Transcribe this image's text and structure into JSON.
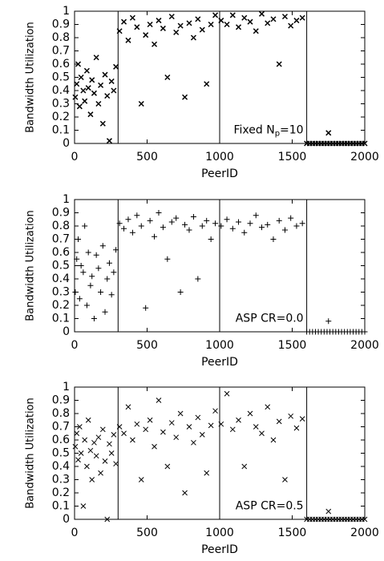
{
  "chart_data": [
    {
      "type": "scatter",
      "marker": "x",
      "color": "#000000",
      "ylabel": "Bandwidth Utilization",
      "xlabel": "PeerID",
      "annotation": "Fixed N",
      "annotation_sub": "p",
      "annotation_tail": "=10",
      "xlim": [
        0,
        2000
      ],
      "ylim": [
        0,
        1
      ],
      "xticks": [
        0,
        500,
        1000,
        1500,
        2000
      ],
      "yticks": [
        0,
        0.1,
        0.2,
        0.3,
        0.4,
        0.5,
        0.6,
        0.7,
        0.8,
        0.9,
        1
      ],
      "vlines": [
        300,
        1000,
        1600
      ],
      "x": [
        5,
        15,
        25,
        35,
        45,
        60,
        70,
        85,
        95,
        110,
        120,
        135,
        150,
        165,
        180,
        195,
        210,
        225,
        240,
        255,
        270,
        285,
        310,
        340,
        370,
        400,
        430,
        460,
        490,
        520,
        550,
        580,
        610,
        640,
        670,
        700,
        730,
        760,
        790,
        820,
        850,
        880,
        910,
        940,
        970,
        1010,
        1050,
        1090,
        1130,
        1170,
        1210,
        1250,
        1290,
        1330,
        1370,
        1410,
        1450,
        1490,
        1530,
        1570,
        1600,
        1620,
        1640,
        1660,
        1680,
        1700,
        1720,
        1740,
        1760,
        1780,
        1800,
        1820,
        1840,
        1860,
        1880,
        1900,
        1920,
        1940,
        1960,
        1980,
        2000,
        1750
      ],
      "values": [
        0.35,
        0.45,
        0.6,
        0.28,
        0.5,
        0.4,
        0.32,
        0.55,
        0.42,
        0.22,
        0.48,
        0.38,
        0.65,
        0.3,
        0.44,
        0.15,
        0.52,
        0.36,
        0.02,
        0.47,
        0.4,
        0.58,
        0.85,
        0.92,
        0.78,
        0.95,
        0.88,
        0.3,
        0.82,
        0.9,
        0.75,
        0.93,
        0.87,
        0.5,
        0.96,
        0.84,
        0.89,
        0.35,
        0.91,
        0.8,
        0.94,
        0.86,
        0.45,
        0.9,
        0.97,
        0.93,
        0.9,
        0.97,
        0.88,
        0.95,
        0.92,
        0.85,
        0.98,
        0.91,
        0.94,
        0.6,
        0.96,
        0.89,
        0.93,
        0.95,
        0,
        0,
        0,
        0,
        0,
        0,
        0,
        0,
        0,
        0,
        0,
        0,
        0,
        0,
        0,
        0,
        0,
        0,
        0,
        0,
        0,
        0.08
      ]
    },
    {
      "type": "scatter",
      "marker": "+",
      "color": "#000000",
      "ylabel": "Bandwidth Utilization",
      "xlabel": "PeerID",
      "annotation": "ASP CR=0.0",
      "xlim": [
        0,
        2000
      ],
      "ylim": [
        0,
        1
      ],
      "xticks": [
        0,
        500,
        1000,
        1500,
        2000
      ],
      "yticks": [
        0,
        0.1,
        0.2,
        0.3,
        0.4,
        0.5,
        0.6,
        0.7,
        0.8,
        0.9,
        1
      ],
      "vlines": [
        300,
        1000,
        1600
      ],
      "x": [
        5,
        15,
        25,
        35,
        45,
        60,
        70,
        85,
        95,
        110,
        120,
        135,
        150,
        165,
        180,
        195,
        210,
        225,
        240,
        255,
        270,
        285,
        310,
        340,
        370,
        400,
        430,
        460,
        490,
        520,
        550,
        580,
        610,
        640,
        670,
        700,
        730,
        760,
        790,
        820,
        850,
        880,
        910,
        940,
        970,
        1010,
        1050,
        1090,
        1130,
        1170,
        1210,
        1250,
        1290,
        1330,
        1370,
        1410,
        1450,
        1490,
        1530,
        1570,
        1600,
        1620,
        1640,
        1660,
        1680,
        1700,
        1720,
        1740,
        1760,
        1780,
        1800,
        1820,
        1840,
        1860,
        1880,
        1900,
        1920,
        1940,
        1960,
        1980,
        2000,
        1750
      ],
      "values": [
        0.3,
        0.55,
        0.7,
        0.25,
        0.5,
        0.45,
        0.8,
        0.2,
        0.6,
        0.35,
        0.42,
        0.1,
        0.58,
        0.48,
        0.3,
        0.65,
        0.15,
        0.4,
        0.52,
        0.28,
        0.45,
        0.62,
        0.82,
        0.78,
        0.85,
        0.75,
        0.88,
        0.8,
        0.18,
        0.84,
        0.72,
        0.9,
        0.79,
        0.55,
        0.83,
        0.86,
        0.3,
        0.81,
        0.77,
        0.87,
        0.4,
        0.8,
        0.84,
        0.7,
        0.82,
        0.8,
        0.85,
        0.78,
        0.83,
        0.75,
        0.82,
        0.88,
        0.79,
        0.81,
        0.7,
        0.84,
        0.77,
        0.86,
        0.8,
        0.82,
        0,
        0,
        0,
        0,
        0,
        0,
        0,
        0,
        0,
        0,
        0,
        0,
        0,
        0,
        0,
        0,
        0,
        0,
        0,
        0,
        0,
        0.08
      ]
    },
    {
      "type": "scatter",
      "marker": "x",
      "color": "#000000",
      "ylabel": "Bandwidth Utilization",
      "xlabel": "PeerID",
      "annotation": "ASP CR=0.5",
      "xlim": [
        0,
        2000
      ],
      "ylim": [
        0,
        1
      ],
      "xticks": [
        0,
        500,
        1000,
        1500,
        2000
      ],
      "yticks": [
        0,
        0.1,
        0.2,
        0.3,
        0.4,
        0.5,
        0.6,
        0.7,
        0.8,
        0.9,
        1
      ],
      "vlines": [
        300,
        1000,
        1600
      ],
      "x": [
        5,
        15,
        25,
        35,
        45,
        60,
        70,
        85,
        95,
        110,
        120,
        135,
        150,
        165,
        180,
        195,
        210,
        225,
        240,
        255,
        270,
        285,
        310,
        340,
        370,
        400,
        430,
        460,
        490,
        520,
        550,
        580,
        610,
        640,
        670,
        700,
        730,
        760,
        790,
        820,
        850,
        880,
        910,
        940,
        970,
        1010,
        1050,
        1090,
        1130,
        1170,
        1210,
        1250,
        1290,
        1330,
        1370,
        1410,
        1450,
        1490,
        1530,
        1570,
        1600,
        1620,
        1640,
        1660,
        1680,
        1700,
        1720,
        1740,
        1760,
        1780,
        1800,
        1820,
        1840,
        1860,
        1880,
        1900,
        1920,
        1940,
        1960,
        1980,
        2000,
        1750
      ],
      "values": [
        0.55,
        0.65,
        0.45,
        0.7,
        0.5,
        0.1,
        0.6,
        0.4,
        0.75,
        0.52,
        0.3,
        0.58,
        0.48,
        0.62,
        0.35,
        0.68,
        0.44,
        0,
        0.57,
        0.5,
        0.64,
        0.42,
        0.7,
        0.65,
        0.85,
        0.6,
        0.72,
        0.3,
        0.68,
        0.75,
        0.55,
        0.9,
        0.66,
        0.4,
        0.73,
        0.62,
        0.8,
        0.2,
        0.7,
        0.58,
        0.77,
        0.64,
        0.35,
        0.71,
        0.82,
        0.72,
        0.95,
        0.68,
        0.75,
        0.4,
        0.8,
        0.7,
        0.65,
        0.85,
        0.6,
        0.74,
        0.3,
        0.78,
        0.69,
        0.76,
        0,
        0,
        0,
        0,
        0,
        0,
        0,
        0,
        0,
        0,
        0,
        0,
        0,
        0,
        0,
        0,
        0,
        0,
        0,
        0,
        0,
        0.06
      ]
    }
  ]
}
